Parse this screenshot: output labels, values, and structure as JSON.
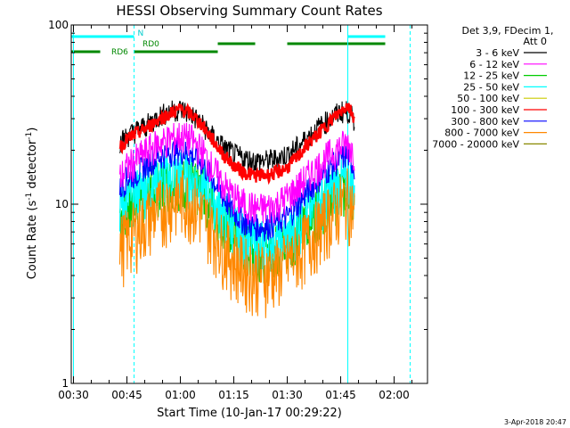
{
  "chart_data": {
    "type": "line",
    "title": "HESSI Observing Summary Count Rates",
    "xlabel": "Start Time (10-Jan-17 00:29:22)",
    "ylabel_main": "Count Rate (s",
    "ylabel_sup1": "-1",
    "ylabel_mid": " detector",
    "ylabel_sup2": "-1",
    "ylabel_end": ")",
    "x_unit": "minutes after 00:00 UT",
    "xlim": [
      29.37,
      129.37
    ],
    "ylim": [
      1,
      100
    ],
    "yscale": "log",
    "grid": false,
    "x_ticks": [
      {
        "value": 30,
        "label": "00:30"
      },
      {
        "value": 45,
        "label": "00:45"
      },
      {
        "value": 60,
        "label": "01:00"
      },
      {
        "value": 75,
        "label": "01:15"
      },
      {
        "value": 90,
        "label": "01:30"
      },
      {
        "value": 105,
        "label": "01:45"
      },
      {
        "value": 120,
        "label": "02:00"
      }
    ],
    "y_ticks": [
      {
        "value": 1,
        "label": "1"
      },
      {
        "value": 10,
        "label": "10"
      },
      {
        "value": 100,
        "label": "100"
      }
    ],
    "legend": {
      "placement": "right",
      "header_line1": "Det 3,9, FDecim 1,",
      "header_line2": "Att 0",
      "entries": [
        {
          "label": "3 - 6 keV",
          "color": "#000000"
        },
        {
          "label": "6 - 12 keV",
          "color": "#ff00ff"
        },
        {
          "label": "12 - 25 keV",
          "color": "#00cc00"
        },
        {
          "label": "25 - 50 keV",
          "color": "#00ffff"
        },
        {
          "label": "50 - 100 keV",
          "color": "#cccc00"
        },
        {
          "label": "100 - 300 keV",
          "color": "#ff0000"
        },
        {
          "label": "300 - 800 keV",
          "color": "#0000ff"
        },
        {
          "label": "800 - 7000 keV",
          "color": "#ff8800"
        },
        {
          "label": "7000 - 20000 keV",
          "color": "#888800"
        }
      ]
    },
    "flag_bars": [
      {
        "label": "N",
        "color": "#00ffff",
        "level": 1,
        "segments": [
          [
            29.37,
            47.0
          ],
          [
            107.0,
            117.5
          ]
        ]
      },
      {
        "label": "RD0",
        "color": "#008800",
        "level": 2,
        "segments": [
          [
            70.5,
            81.0
          ],
          [
            90.0,
            117.5
          ]
        ]
      },
      {
        "label": "RD6",
        "color": "#008800",
        "level": 3,
        "segments": [
          [
            29.37,
            37.5
          ],
          [
            47.0,
            70.5
          ]
        ]
      }
    ],
    "vlines": [
      {
        "x": 30.0,
        "style": "solid",
        "color": "#00ffff"
      },
      {
        "x": 47.0,
        "style": "dashed",
        "color": "#00ffff"
      },
      {
        "x": 107.0,
        "style": "solid",
        "color": "#00ffff"
      },
      {
        "x": 124.5,
        "style": "dashed",
        "color": "#00ffff"
      }
    ],
    "series": [
      {
        "name": "300 - 800 keV",
        "color": "#0000ff",
        "x": [
          43,
          45,
          48,
          51,
          54,
          57,
          60,
          63,
          66,
          69,
          72,
          75,
          78,
          81,
          84,
          87,
          90,
          93,
          96,
          99,
          102,
          105,
          107,
          109
        ],
        "y": [
          12,
          14,
          15,
          17,
          18.5,
          19.5,
          20,
          19,
          17,
          14,
          11,
          9,
          8,
          7.5,
          7.5,
          8,
          8.5,
          10,
          12,
          14,
          16,
          18,
          19,
          16
        ]
      },
      {
        "name": "800 - 7000 keV",
        "color": "#ff8800",
        "x": [
          43,
          45,
          48,
          51,
          54,
          57,
          60,
          63,
          66,
          69,
          72,
          75,
          78,
          81,
          84,
          87,
          90,
          93,
          96,
          99,
          102,
          105,
          107,
          109
        ],
        "y": [
          6,
          6.5,
          7.5,
          8.5,
          9.5,
          10.5,
          11,
          10.5,
          9,
          7.5,
          6,
          5,
          4.5,
          4.2,
          4.2,
          4.4,
          4.8,
          5.5,
          6.5,
          7.5,
          9,
          10,
          11,
          9
        ]
      },
      {
        "name": "6 - 12 keV",
        "color": "#ff00ff",
        "x": [
          43,
          45,
          48,
          51,
          54,
          57,
          60,
          63,
          66,
          69,
          72,
          75,
          78,
          81,
          84,
          87,
          90,
          93,
          96,
          99,
          102,
          105,
          107,
          109
        ],
        "y": [
          14,
          16,
          18,
          20,
          22,
          23,
          24,
          23,
          20,
          16,
          13,
          11,
          10,
          9.5,
          9.5,
          10,
          11,
          12.5,
          14.5,
          16.5,
          19,
          21,
          22,
          19
        ]
      },
      {
        "name": "3 - 6 keV",
        "color": "#000000",
        "x": [
          43,
          45,
          48,
          51,
          54,
          57,
          60,
          63,
          66,
          69,
          72,
          75,
          78,
          81,
          84,
          87,
          90,
          93,
          96,
          99,
          102,
          105,
          107,
          109
        ],
        "y": [
          22,
          24,
          26,
          28,
          31,
          33,
          34,
          32,
          28,
          24,
          21,
          19,
          18,
          17.5,
          17.5,
          18,
          19,
          21,
          24,
          27,
          30,
          33,
          33,
          29
        ]
      },
      {
        "name": "100 - 300 keV",
        "color": "#ff0000",
        "x": [
          43,
          45,
          48,
          51,
          54,
          57,
          60,
          63,
          66,
          69,
          72,
          75,
          78,
          81,
          84,
          87,
          90,
          93,
          96,
          99,
          102,
          105,
          107,
          109
        ],
        "y": [
          21,
          23,
          25,
          27,
          30,
          32,
          34,
          32,
          28,
          23,
          19,
          16.5,
          15,
          14.5,
          14.5,
          15,
          16,
          18.5,
          22,
          25,
          29,
          33,
          36,
          30
        ]
      }
    ],
    "cyan_band": {
      "name": "25 - 50 keV",
      "color": "#00ffff",
      "x": [
        43,
        48,
        54,
        60,
        66,
        72,
        78,
        84,
        90,
        96,
        102,
        107,
        109
      ],
      "y": [
        10,
        12,
        14,
        15,
        13,
        9,
        6.5,
        6,
        6.5,
        9,
        12,
        14,
        12
      ]
    },
    "green_band": {
      "name": "12 - 25 keV",
      "color": "#00cc00",
      "x": [
        43,
        48,
        54,
        60,
        66,
        72,
        78,
        84,
        90,
        96,
        102,
        107,
        109
      ],
      "y": [
        9,
        11,
        13,
        14,
        12,
        8.5,
        6,
        5.5,
        6,
        8.5,
        11,
        13,
        11
      ]
    }
  },
  "footer": {
    "timestamp": "3-Apr-2018 20:47"
  }
}
